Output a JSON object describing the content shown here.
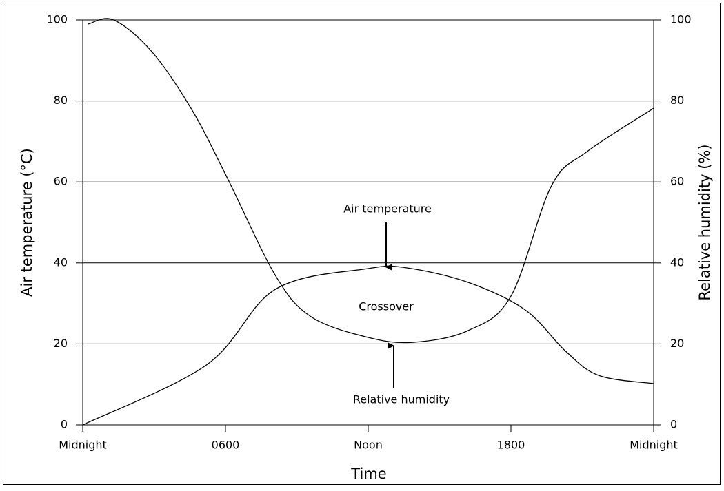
{
  "chart_data": {
    "type": "line",
    "x_label": "Time",
    "y_label": "Air temperature (°C)",
    "y2_label": "Relative humidity (%)",
    "xlim": [
      0,
      24
    ],
    "xticks": [
      {
        "value": 0,
        "label": "Midnight"
      },
      {
        "value": 6,
        "label": "0600"
      },
      {
        "value": 12,
        "label": "Noon"
      },
      {
        "value": 18,
        "label": "1800"
      },
      {
        "value": 24,
        "label": "Midnight"
      }
    ],
    "ylim": [
      0,
      100
    ],
    "yticks": [
      0,
      20,
      40,
      60,
      80,
      100
    ],
    "y2lim": [
      0,
      100
    ],
    "y2ticks": [
      0,
      20,
      40,
      60,
      80,
      100
    ],
    "grid": true,
    "annotations": [
      "Air temperature",
      "Relative humidity",
      "Crossover"
    ],
    "series": [
      {
        "name": "Air temperature",
        "color": "#000000",
        "x": [
          0,
          5.2,
          8.1,
          12,
          13.6,
          16.2,
          18.6,
          20.3,
          21.7,
          24
        ],
        "values": [
          0,
          14.8,
          33.5,
          38.6,
          38.8,
          35.2,
          28.4,
          18.2,
          12.2,
          10.2
        ]
      },
      {
        "name": "Relative humidity",
        "color": "#000000",
        "axis": "y2",
        "x": [
          0.23,
          1.3,
          2.9,
          4.6,
          6.1,
          8.1,
          9.6,
          12,
          13.9,
          16.2,
          18,
          19.7,
          21.2,
          24
        ],
        "values": [
          99,
          100,
          92.2,
          77.7,
          60.7,
          36.9,
          26.7,
          21.6,
          20.4,
          23.3,
          31.8,
          59,
          67.5,
          78.2
        ]
      }
    ]
  }
}
